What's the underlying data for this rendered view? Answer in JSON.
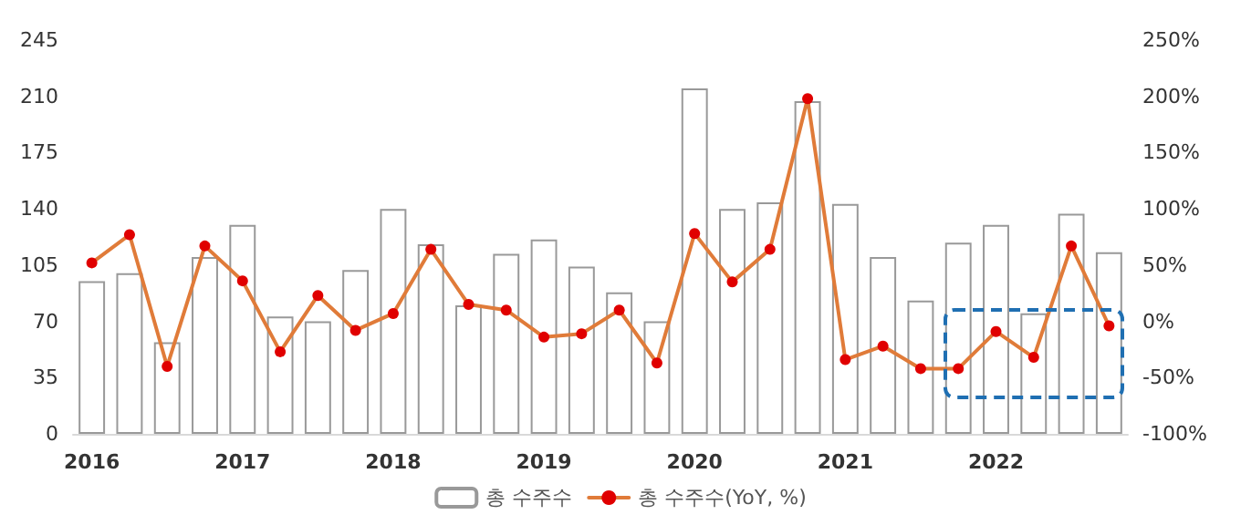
{
  "chart_data": {
    "type": "bar",
    "categories": [
      "2016",
      null,
      null,
      null,
      "2017",
      null,
      null,
      null,
      "2018",
      null,
      null,
      null,
      "2019",
      null,
      null,
      null,
      "2020",
      null,
      null,
      null,
      "2021",
      null,
      null,
      null,
      "2022",
      null,
      null,
      null
    ],
    "series": [
      {
        "name": "총 수주수",
        "color": "#ffffff",
        "values": [
          95,
          100,
          57,
          110,
          130,
          73,
          70,
          102,
          140,
          118,
          80,
          112,
          121,
          104,
          88,
          70,
          215,
          140,
          144,
          207,
          143,
          110,
          83,
          119,
          130,
          75,
          137,
          113
        ]
      },
      {
        "name": "총 수주수(YoY, %)",
        "type": "line",
        "axis": "y2",
        "color": "#e07b39",
        "values": [
          52,
          77,
          -40,
          67,
          36,
          -27,
          23,
          -8,
          7,
          64,
          15,
          10,
          -14,
          -11,
          10,
          -37,
          78,
          35,
          64,
          198,
          -34,
          -22,
          -42,
          -42,
          -9,
          -32,
          67,
          -4
        ]
      }
    ],
    "ylim": [
      0,
      245
    ],
    "yticks": [
      0,
      35,
      70,
      105,
      140,
      175,
      210,
      245
    ],
    "y2lim": [
      -100,
      250
    ],
    "y2ticks": [
      {
        "value": -100,
        "label": "-100%"
      },
      {
        "value": -50,
        "label": "-50%"
      },
      {
        "value": 0,
        "label": "0%"
      },
      {
        "value": 50,
        "label": "50%"
      },
      {
        "value": 100,
        "label": "100%"
      },
      {
        "value": 150,
        "label": "150%"
      },
      {
        "value": 200,
        "label": "200%"
      },
      {
        "value": 250,
        "label": "250%"
      }
    ],
    "marker": "circle",
    "legend": "bottom",
    "grid": false
  }
}
